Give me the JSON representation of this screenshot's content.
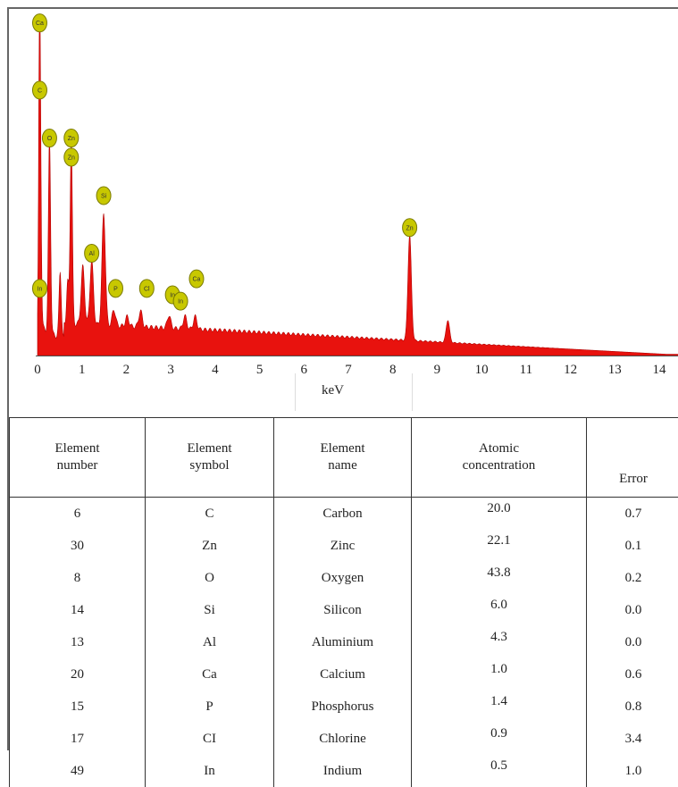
{
  "chart_data": {
    "type": "area",
    "xlabel": "keV",
    "xlim": [
      0,
      14.5
    ],
    "xticks": [
      0,
      1,
      2,
      3,
      4,
      5,
      6,
      7,
      8,
      9,
      10,
      11,
      12,
      13,
      14
    ],
    "fill_color": "#e8120e",
    "grid": false,
    "peaks": [
      {
        "x": 0.05,
        "y": 100
      },
      {
        "x": 0.27,
        "y": 61
      },
      {
        "x": 0.51,
        "y": 21
      },
      {
        "x": 0.68,
        "y": 13
      },
      {
        "x": 0.76,
        "y": 58
      },
      {
        "x": 1.02,
        "y": 18
      },
      {
        "x": 1.22,
        "y": 20
      },
      {
        "x": 1.49,
        "y": 35
      },
      {
        "x": 1.72,
        "y": 5
      },
      {
        "x": 2.02,
        "y": 3
      },
      {
        "x": 2.32,
        "y": 5
      },
      {
        "x": 2.96,
        "y": 4
      },
      {
        "x": 3.32,
        "y": 4
      },
      {
        "x": 3.55,
        "y": 4
      },
      {
        "x": 8.38,
        "y": 33
      },
      {
        "x": 9.24,
        "y": 7
      }
    ],
    "annotations": [
      {
        "label": "Ca",
        "x": 0.05,
        "y": 104
      },
      {
        "label": "C",
        "x": 0.05,
        "y": 83
      },
      {
        "label": "O",
        "x": 0.27,
        "y": 68
      },
      {
        "label": "Zn",
        "x": 0.76,
        "y": 68
      },
      {
        "label": "Zn",
        "x": 0.76,
        "y": 62
      },
      {
        "label": "In",
        "x": 0.05,
        "y": 21
      },
      {
        "label": "Si",
        "x": 1.49,
        "y": 50
      },
      {
        "label": "Al",
        "x": 1.22,
        "y": 32
      },
      {
        "label": "P",
        "x": 1.76,
        "y": 21
      },
      {
        "label": "Cl",
        "x": 2.46,
        "y": 21
      },
      {
        "label": "In",
        "x": 3.04,
        "y": 19
      },
      {
        "label": "In",
        "x": 3.22,
        "y": 17
      },
      {
        "label": "Ca",
        "x": 3.58,
        "y": 24
      },
      {
        "label": "Zn",
        "x": 8.38,
        "y": 40
      }
    ]
  },
  "table": {
    "headers": {
      "number": [
        "Element",
        "number"
      ],
      "symbol": [
        "Element",
        "symbol"
      ],
      "name": [
        "Element",
        "name"
      ],
      "conc": [
        "Atomic",
        "concentration"
      ],
      "error": "Error"
    },
    "rows": [
      {
        "number": "6",
        "symbol": "C",
        "name": "Carbon",
        "conc": "20.0",
        "error": "0.7"
      },
      {
        "number": "30",
        "symbol": "Zn",
        "name": "Zinc",
        "conc": "22.1",
        "error": "0.1"
      },
      {
        "number": "8",
        "symbol": "O",
        "name": "Oxygen",
        "conc": "43.8",
        "error": "0.2"
      },
      {
        "number": "14",
        "symbol": "Si",
        "name": "Silicon",
        "conc": "6.0",
        "error": "0.0"
      },
      {
        "number": "13",
        "symbol": "Al",
        "name": "Aluminium",
        "conc": "4.3",
        "error": "0.0"
      },
      {
        "number": "20",
        "symbol": "Ca",
        "name": "Calcium",
        "conc": "1.0",
        "error": "0.6"
      },
      {
        "number": "15",
        "symbol": "P",
        "name": "Phosphorus",
        "conc": "1.4",
        "error": "0.8"
      },
      {
        "number": "17",
        "symbol": "CI",
        "name": "Chlorine",
        "conc": "0.9",
        "error": "3.4"
      },
      {
        "number": "49",
        "symbol": "In",
        "name": "Indium",
        "conc": "0.5",
        "error": "1.0"
      }
    ]
  }
}
